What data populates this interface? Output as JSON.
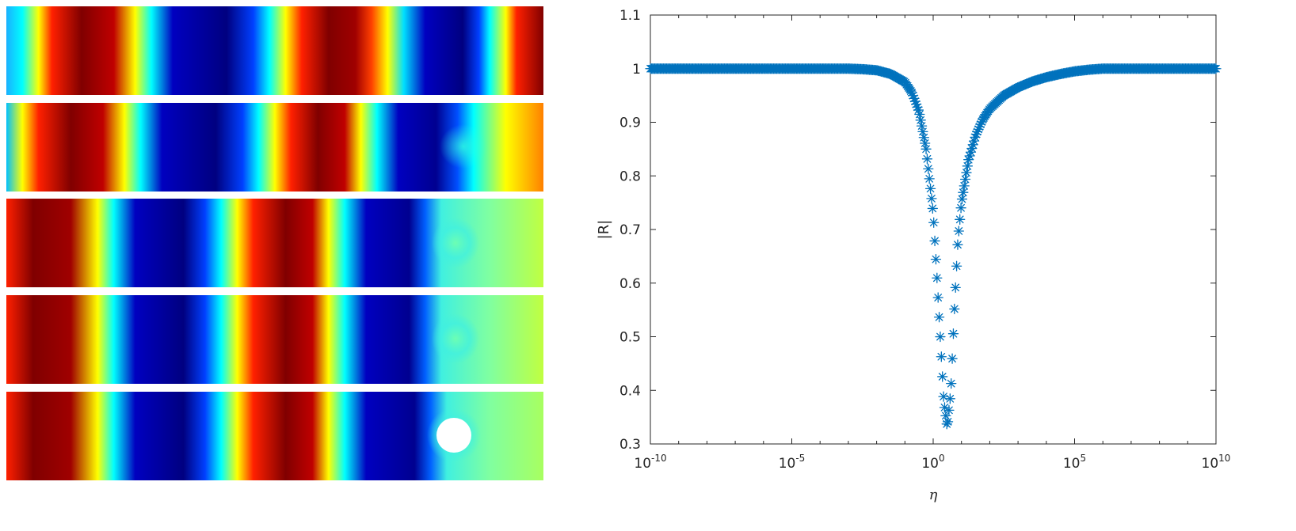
{
  "colors": {
    "series": "#0072BD",
    "axis": "#262626",
    "panel_gap": "#ffffff",
    "obstacle": "#ffffff"
  },
  "field_panels": [
    {
      "label": "field-panel-1",
      "obstacle": "none"
    },
    {
      "label": "field-panel-2",
      "obstacle": "faint"
    },
    {
      "label": "field-panel-3",
      "obstacle": "soft"
    },
    {
      "label": "field-panel-4",
      "obstacle": "soft"
    },
    {
      "label": "field-panel-5",
      "obstacle": "solid"
    }
  ],
  "colormap": "jet",
  "chart_data": {
    "type": "scatter",
    "marker": "asterisk",
    "title": "",
    "xlabel": "η",
    "ylabel": "|R|",
    "xscale": "log",
    "xlim": [
      1e-10,
      10000000000.0
    ],
    "ylim": [
      0.3,
      1.1
    ],
    "xticks": [
      {
        "value": 1e-10,
        "base": "10",
        "exp": "-10"
      },
      {
        "value": 1e-05,
        "base": "10",
        "exp": "-5"
      },
      {
        "value": 1,
        "base": "10",
        "exp": "0"
      },
      {
        "value": 100000.0,
        "base": "10",
        "exp": "5"
      },
      {
        "value": 10000000000.0,
        "base": "10",
        "exp": "10"
      }
    ],
    "yticks": [
      "0.3",
      "0.4",
      "0.5",
      "0.6",
      "0.7",
      "0.8",
      "0.9",
      "1",
      "1.1"
    ],
    "grid": false,
    "legend": "none",
    "series": [
      {
        "x": [
          1e-10,
          3.16e-10,
          1e-09,
          3.16e-09,
          1e-08,
          3.16e-08,
          1e-07,
          3.16e-07,
          1e-06,
          3.16e-06,
          1e-05,
          3.16e-05,
          0.0001,
          0.000316,
          0.001,
          0.00316,
          0.01,
          0.0316,
          0.1,
          0.178,
          0.316,
          0.562,
          1,
          1.33,
          1.78,
          2.37,
          3.16,
          4.22,
          5.62,
          7.5,
          10,
          17.8,
          31.6,
          56.2,
          100,
          316,
          1000,
          3160,
          10000,
          31600,
          100000,
          316000,
          1000000.0,
          10000000.0,
          100000000.0,
          1000000000.0,
          10000000000.0
        ],
        "y": [
          1,
          1,
          1,
          1,
          1,
          1,
          1,
          1,
          1,
          1,
          1,
          1,
          1,
          1,
          1,
          0.999,
          0.997,
          0.99,
          0.975,
          0.955,
          0.92,
          0.85,
          0.73,
          0.62,
          0.5,
          0.38,
          0.33,
          0.4,
          0.55,
          0.68,
          0.75,
          0.83,
          0.875,
          0.905,
          0.925,
          0.95,
          0.965,
          0.976,
          0.984,
          0.99,
          0.995,
          0.998,
          1,
          1,
          1,
          1,
          1
        ]
      }
    ]
  }
}
